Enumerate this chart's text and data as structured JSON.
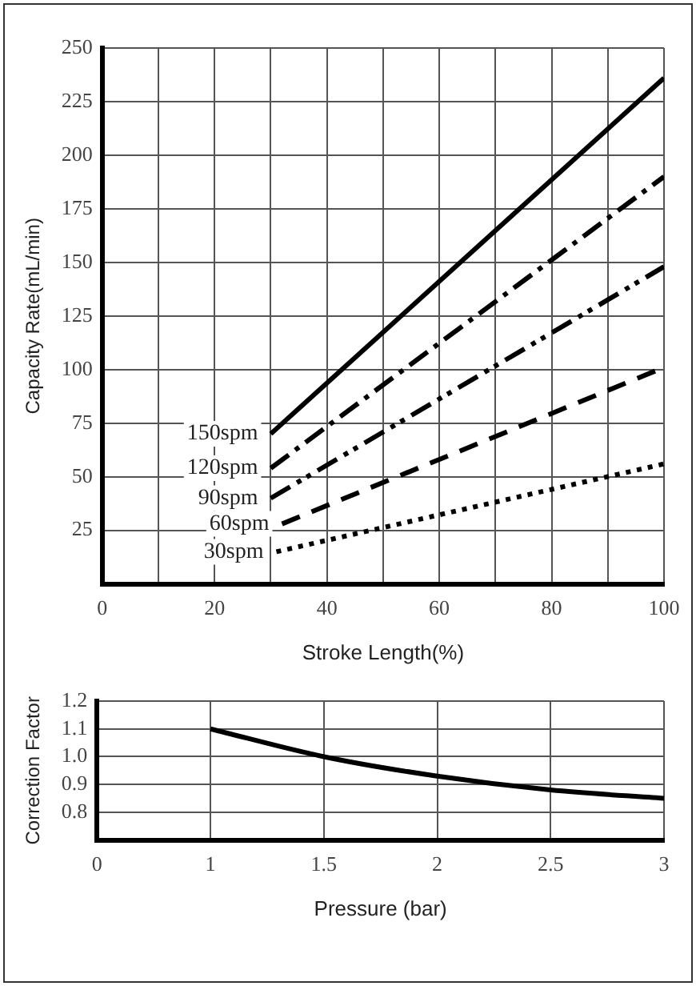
{
  "chart_data": [
    {
      "type": "line",
      "xlabel": "Stroke Length(%)",
      "ylabel": "Capacity Rate(mL/min)",
      "xlim": [
        0,
        100
      ],
      "ylim": [
        0,
        250
      ],
      "xticks": [
        0,
        {
          "value": 10,
          "label": null
        },
        20,
        {
          "value": 30,
          "label": null
        },
        40,
        {
          "value": 50,
          "label": null
        },
        60,
        {
          "value": 70,
          "label": null
        },
        80,
        {
          "value": 90,
          "label": null
        },
        100
      ],
      "yticks": [
        25,
        50,
        75,
        100,
        125,
        150,
        175,
        200,
        225,
        250
      ],
      "grid": true,
      "legend": false,
      "marker": "none",
      "series": [
        {
          "name": "150spm",
          "color": "#000000",
          "line_style": "solid",
          "x": [
            30,
            100
          ],
          "values": [
            70,
            236
          ]
        },
        {
          "name": "120spm",
          "color": "#000000",
          "line_style": "dashdot",
          "x": [
            30,
            100
          ],
          "values": [
            54,
            190
          ]
        },
        {
          "name": "90spm",
          "color": "#000000",
          "line_style": "dashdotdot",
          "x": [
            30,
            100
          ],
          "values": [
            40,
            148
          ]
        },
        {
          "name": "60spm",
          "color": "#000000",
          "line_style": "dashed",
          "x": [
            32,
            100
          ],
          "values": [
            28,
            101
          ]
        },
        {
          "name": "30spm",
          "color": "#000000",
          "line_style": "dotted",
          "x": [
            31,
            100
          ],
          "values": [
            15,
            56
          ]
        }
      ]
    },
    {
      "type": "line",
      "xlabel": "Pressure (bar)",
      "ylabel": "Correction Factor",
      "categories": [
        "0",
        "1",
        "1.5",
        "2",
        "2.5",
        "3"
      ],
      "ylim": [
        0.7,
        1.2
      ],
      "yticks": [
        0.8,
        0.9,
        {
          "value": 1,
          "label": "1.0"
        },
        1.1,
        1.2
      ],
      "grid": true,
      "legend": false,
      "marker": "none",
      "series": [
        {
          "color": "#000000",
          "line_style": "solid",
          "values": [
            null,
            1.1,
            1.0,
            0.93,
            0.88,
            0.85
          ]
        }
      ]
    }
  ]
}
